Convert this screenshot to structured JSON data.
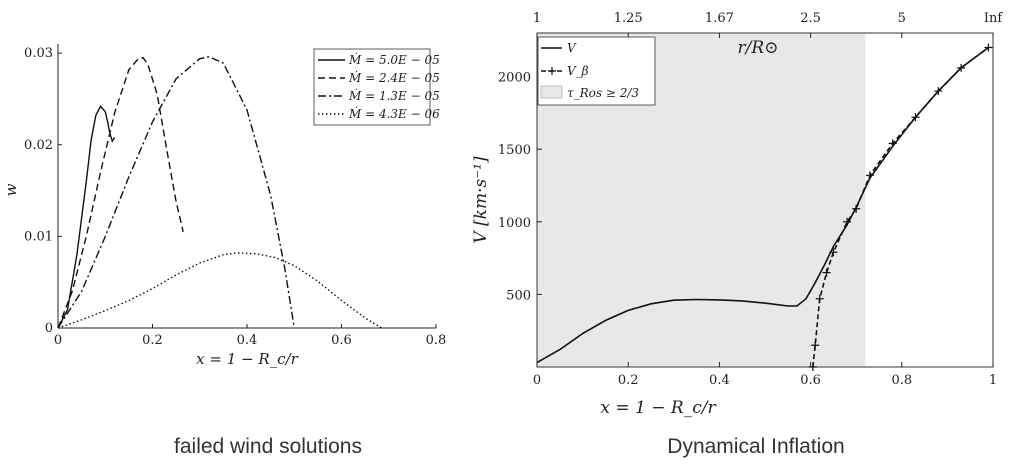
{
  "captions": {
    "left": "failed wind solutions",
    "right": "Dynamical Inflation"
  },
  "chart_data": [
    {
      "type": "line",
      "title": "",
      "xlabel": "x = 1 − R_c/r",
      "ylabel": "w",
      "xlim": [
        0,
        0.8
      ],
      "ylim": [
        0,
        0.031
      ],
      "xticks": [
        0,
        0.2,
        0.4,
        0.6,
        0.8
      ],
      "xtick_labels": [
        "0",
        "0.2",
        "0.4",
        "0.6",
        "0.8"
      ],
      "yticks": [
        0,
        0.01,
        0.02,
        0.03
      ],
      "ytick_labels": [
        "0",
        "0.01",
        "0.02",
        "0.03"
      ],
      "grid": false,
      "legend": "top-right",
      "legend_labels": [
        "Ṁ = 5.0E − 05",
        "Ṁ = 2.4E − 05",
        "Ṁ = 1.3E − 05",
        "Ṁ = 4.3E − 06"
      ],
      "series": [
        {
          "name": "Ṁ = 5.0E − 05",
          "dash": "",
          "color": "#111111",
          "x": [
            0,
            0.02,
            0.04,
            0.06,
            0.07,
            0.08,
            0.09,
            0.1,
            0.105,
            0.11,
            0.115,
            0.12
          ],
          "y": [
            0,
            0.002,
            0.008,
            0.016,
            0.0205,
            0.0232,
            0.0242,
            0.0236,
            0.0225,
            0.0212,
            0.0204,
            0.0208
          ]
        },
        {
          "name": "Ṁ = 2.4E − 05",
          "dash": "7,4",
          "color": "#111111",
          "x": [
            0,
            0.03,
            0.06,
            0.09,
            0.12,
            0.15,
            0.17,
            0.18,
            0.19,
            0.21,
            0.23,
            0.25,
            0.265
          ],
          "y": [
            0,
            0.004,
            0.01,
            0.017,
            0.0235,
            0.0282,
            0.0294,
            0.0295,
            0.0288,
            0.0255,
            0.0195,
            0.0138,
            0.0105
          ]
        },
        {
          "name": "Ṁ = 1.3E − 05",
          "dash": "8,3,2,3",
          "color": "#111111",
          "x": [
            0,
            0.05,
            0.1,
            0.15,
            0.2,
            0.25,
            0.3,
            0.32,
            0.35,
            0.4,
            0.45,
            0.48,
            0.5
          ],
          "y": [
            0,
            0.004,
            0.01,
            0.0165,
            0.0225,
            0.0272,
            0.0294,
            0.0296,
            0.0289,
            0.0238,
            0.0145,
            0.0065,
            0.0
          ]
        },
        {
          "name": "Ṁ = 4.3E − 06",
          "dash": "1.5,2.5",
          "color": "#111111",
          "x": [
            0,
            0.05,
            0.1,
            0.15,
            0.2,
            0.25,
            0.3,
            0.35,
            0.38,
            0.42,
            0.46,
            0.5,
            0.55,
            0.6,
            0.65,
            0.685
          ],
          "y": [
            0,
            0.0009,
            0.0019,
            0.003,
            0.0043,
            0.0058,
            0.0071,
            0.008,
            0.0082,
            0.0081,
            0.0077,
            0.0068,
            0.0051,
            0.003,
            0.0011,
            0
          ]
        }
      ]
    },
    {
      "type": "line",
      "title": "",
      "xlabel": "x = 1 − R_c/r",
      "ylabel": "V [km·s⁻¹]",
      "top_axis_label": "r/R⊙",
      "xlim": [
        0,
        1
      ],
      "ylim": [
        0,
        2300
      ],
      "xticks": [
        0,
        0.2,
        0.4,
        0.6,
        0.8,
        1
      ],
      "xtick_labels": [
        "0",
        "0.2",
        "0.4",
        "0.6",
        "0.8",
        "1"
      ],
      "yticks": [
        500,
        1000,
        1500,
        2000
      ],
      "ytick_labels": [
        "500",
        "1000",
        "1500",
        "2000"
      ],
      "top_ticks_x": [
        0,
        0.2,
        0.4,
        0.6,
        0.8,
        1
      ],
      "top_tick_labels": [
        "1",
        "1.25",
        "1.67",
        "2.5",
        "5",
        "Inf"
      ],
      "shaded_region": {
        "x0": 0,
        "x1": 0.72,
        "label": "τ_Ros ≥ 2/3",
        "color": "#e8e8e6"
      },
      "grid": false,
      "legend": "top-left",
      "legend_labels": [
        "V",
        "V_β",
        "τ_Ros ≥ 2/3"
      ],
      "series": [
        {
          "name": "V",
          "dash": "",
          "color": "#111111",
          "markers": false,
          "x": [
            0,
            0.05,
            0.1,
            0.15,
            0.2,
            0.25,
            0.3,
            0.35,
            0.4,
            0.45,
            0.5,
            0.55,
            0.57,
            0.59,
            0.61,
            0.63,
            0.65,
            0.68,
            0.7,
            0.73,
            0.78,
            0.83,
            0.88,
            0.93,
            0.99
          ],
          "y": [
            30,
            120,
            230,
            320,
            390,
            435,
            460,
            465,
            462,
            455,
            440,
            420,
            420,
            470,
            580,
            700,
            830,
            980,
            1100,
            1300,
            1520,
            1720,
            1900,
            2060,
            2200
          ]
        },
        {
          "name": "V_β",
          "dash": "5,3",
          "color": "#111111",
          "markers": true,
          "x": [
            0.605,
            0.61,
            0.62,
            0.635,
            0.65,
            0.68,
            0.7,
            0.73,
            0.78,
            0.83,
            0.88,
            0.93,
            0.99
          ],
          "y": [
            0,
            150,
            470,
            650,
            790,
            1000,
            1090,
            1320,
            1540,
            1720,
            1900,
            2060,
            2200
          ]
        }
      ]
    }
  ]
}
